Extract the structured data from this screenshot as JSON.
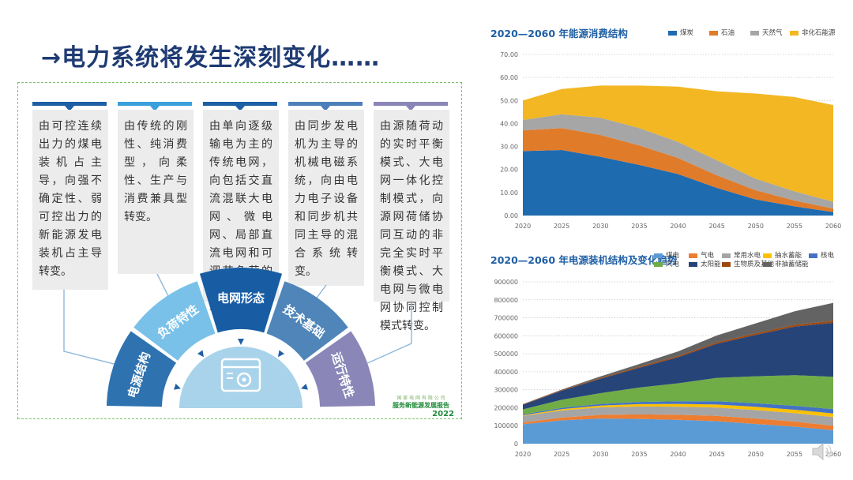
{
  "slide": {
    "title": "→电力系统将发生深刻变化……",
    "logo": {
      "line1": "国 家 电 网 有 限 公 司",
      "line2": "服务新能源发展报告",
      "line3": "2022"
    }
  },
  "columns": [
    {
      "text": "由可控连续出力的煤电装机占主导，向强不确定性、弱可控出力的新能源发电装机占主导转变。",
      "color": "#1f5fa5"
    },
    {
      "text": "由传统的刚性、纯消费型，向柔性、生产与消费兼具型转变。",
      "color": "#3aa0dc"
    },
    {
      "text": "由单向逐级输电为主的传统电网，向包括交直流混联大电网、微电网、局部直流电网和可调节负荷的能源互联网转变。",
      "color": "#1f5fa5"
    },
    {
      "text": "由同步发电机为主导的机械电磁系统，向由电力电子设备和同步机共同主导的混合系统转变。",
      "color": "#4d7fb8"
    },
    {
      "text": "由源随荷动的实时平衡模式、大电网一体化控制模式，向源网荷储协同互动的非完全实时平衡模式、大电网与微电网协同控制模式转变。",
      "color": "#8a86b8"
    }
  ],
  "arc": {
    "segments": [
      {
        "label": "电源结构",
        "color": "#2f72b0"
      },
      {
        "label": "负荷特性",
        "color": "#79c1e8"
      },
      {
        "label": "电网形态",
        "color": "#185da3"
      },
      {
        "label": "技术基础",
        "color": "#4f85b9"
      },
      {
        "label": "运行特性",
        "color": "#8a86b8"
      }
    ],
    "center_icon": "settings-window-icon"
  },
  "chart_data": [
    {
      "type": "area",
      "title": "2020—2060 年能源消费结构",
      "x": [
        2020,
        2025,
        2030,
        2035,
        2040,
        2045,
        2050,
        2055,
        2060
      ],
      "tick_labels": [
        "2020",
        "2025",
        "2030",
        "2035",
        "2040",
        "2045",
        "2050",
        "2055",
        "2060"
      ],
      "y_ticks": [
        "0.00",
        "10.00",
        "20.00",
        "30.00",
        "40.00",
        "50.00",
        "60.00",
        "70.00"
      ],
      "ylim": [
        0,
        70
      ],
      "stacked": true,
      "series": [
        {
          "name": "煤炭",
          "color": "#1f6bb0",
          "values": [
            28,
            28.5,
            25.5,
            22,
            18,
            12,
            7,
            4,
            1.5
          ]
        },
        {
          "name": "石油",
          "color": "#e07b2a",
          "values": [
            9,
            9.5,
            9.5,
            8.5,
            7,
            5.5,
            4,
            2.5,
            1.5
          ]
        },
        {
          "name": "天然气",
          "color": "#a6a6a6",
          "values": [
            4.5,
            6,
            7.5,
            7.5,
            7,
            6.5,
            5,
            4,
            3
          ]
        },
        {
          "name": "非化石能源",
          "color": "#f2b722",
          "values": [
            8.5,
            11,
            14,
            18.5,
            24,
            30,
            37,
            41,
            42
          ]
        }
      ]
    },
    {
      "type": "area",
      "title": "2020—2060 年电源装机结构及变化趋势",
      "x": [
        2020,
        2025,
        2030,
        2035,
        2040,
        2045,
        2050,
        2055,
        2060
      ],
      "tick_labels": [
        "2020",
        "2025",
        "2030",
        "2035",
        "2040",
        "2045",
        "2050",
        "2055",
        "2060"
      ],
      "y_ticks": [
        "0",
        "100000",
        "200000",
        "300000",
        "400000",
        "500000",
        "600000",
        "700000",
        "800000",
        "900000"
      ],
      "ylim": [
        0,
        900000
      ],
      "stacked": true,
      "series": [
        {
          "name": "煤电",
          "color": "#5b9bd5",
          "values": [
            108000,
            130000,
            140000,
            138000,
            133000,
            125000,
            110000,
            95000,
            75000
          ]
        },
        {
          "name": "气电",
          "color": "#ed7d31",
          "values": [
            10000,
            15000,
            20000,
            25000,
            28000,
            30000,
            30000,
            28000,
            25000
          ]
        },
        {
          "name": "常用水电",
          "color": "#a5a5a5",
          "values": [
            37000,
            40000,
            42000,
            44000,
            45000,
            46000,
            47000,
            47000,
            48000
          ]
        },
        {
          "name": "抽水蓄能",
          "color": "#ffc000",
          "values": [
            3000,
            7000,
            10000,
            13000,
            15000,
            17000,
            18000,
            19000,
            20000
          ]
        },
        {
          "name": "核电",
          "color": "#4472c4",
          "values": [
            5000,
            7000,
            9000,
            12000,
            15000,
            18000,
            20000,
            22000,
            24000
          ]
        },
        {
          "name": "风电",
          "color": "#70ad47",
          "values": [
            28000,
            45000,
            60000,
            80000,
            100000,
            130000,
            150000,
            170000,
            180000
          ]
        },
        {
          "name": "太阳能",
          "color": "#264478",
          "values": [
            25000,
            50000,
            80000,
            110000,
            145000,
            190000,
            230000,
            270000,
            300000
          ]
        },
        {
          "name": "生物质及其他",
          "color": "#9e480e",
          "values": [
            3000,
            4000,
            5000,
            6000,
            7000,
            8000,
            9000,
            10000,
            11000
          ]
        },
        {
          "name": "非抽蓄储能",
          "color": "#636363",
          "values": [
            1000,
            3000,
            8000,
            15000,
            25000,
            38000,
            55000,
            75000,
            100000
          ]
        }
      ]
    }
  ]
}
